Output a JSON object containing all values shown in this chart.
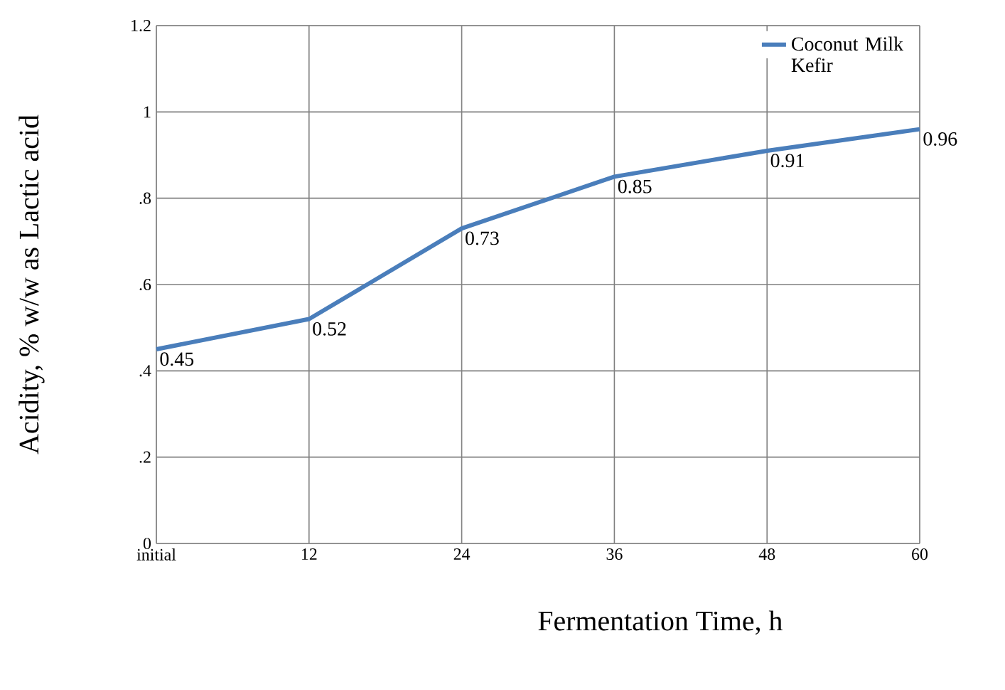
{
  "chart_data": {
    "type": "line",
    "xlabel": "Fermentation Time, h",
    "ylabel": "Acidity, %  w/w as Lactic acid",
    "categories": [
      "initial",
      "12",
      "24",
      "36",
      "48",
      "60"
    ],
    "series": [
      {
        "name": "Coconut Milk Kefir",
        "color": "#4a7ebb",
        "values": [
          0.45,
          0.52,
          0.73,
          0.85,
          0.91,
          0.96
        ]
      }
    ],
    "ylim": [
      0,
      1.2
    ],
    "yticks": [
      0,
      {
        "value": 0.2,
        "label": ".2"
      },
      {
        "value": 0.4,
        "label": ".4"
      },
      {
        "value": 0.6,
        "label": ".6"
      },
      {
        "value": 0.8,
        "label": ".8"
      },
      1,
      1.2
    ],
    "grid": true,
    "legend": "top right",
    "data_labels": true,
    "marker": "none",
    "line_style": "solid"
  }
}
